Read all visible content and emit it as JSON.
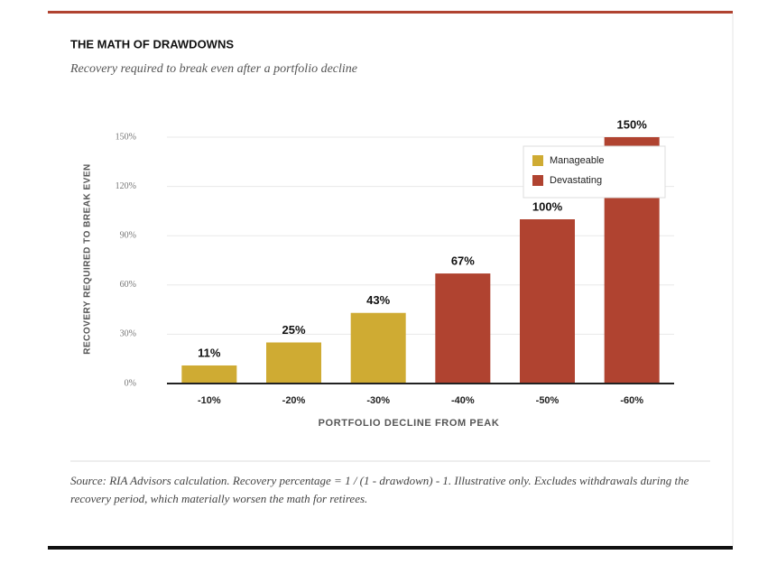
{
  "chart_data": {
    "type": "bar",
    "title": "THE MATH OF DRAWDOWNS",
    "subtitle": "Recovery required to break even after a portfolio decline",
    "y_label": "RECOVERY REQUIRED TO BREAK EVEN",
    "x_label": "PORTFOLIO DECLINE FROM PEAK",
    "source": "Source: RIA Advisors calculation. Recovery percentage = 1 / (1 - drawdown) - 1. Illustrative only. Excludes withdrawals during the recovery period, which materially worsen the math for retirees.",
    "categories": [
      "-10%",
      "-20%",
      "-30%",
      "-40%",
      "-50%",
      "-60%"
    ],
    "series": [
      {
        "name": "Manageable",
        "color": "#cfab33",
        "values": [
          11,
          25,
          43,
          null,
          null,
          null
        ],
        "value_labels": [
          "11%",
          "25%",
          "43%",
          null,
          null,
          null
        ]
      },
      {
        "name": "Devastating",
        "color": "#b04330",
        "values": [
          null,
          null,
          null,
          67,
          100,
          150
        ],
        "value_labels": [
          null,
          null,
          null,
          "67%",
          "100%",
          "150%"
        ]
      }
    ],
    "ylim": [
      0,
      150
    ],
    "yticks": [
      {
        "value": 0,
        "label": "0%"
      },
      {
        "value": 30,
        "label": "30%"
      },
      {
        "value": 60,
        "label": "60%"
      },
      {
        "value": 90,
        "label": "90%"
      },
      {
        "value": 120,
        "label": "120%"
      },
      {
        "value": 150,
        "label": "150%"
      }
    ],
    "grid": true,
    "legend": "upper right"
  }
}
